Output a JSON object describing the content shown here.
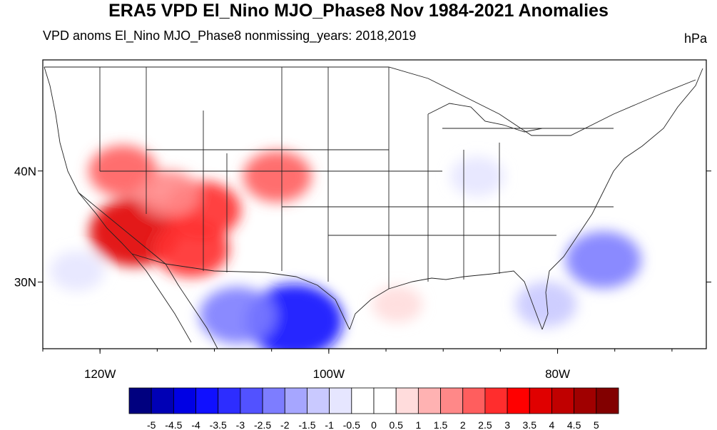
{
  "title": "ERA5 VPD El_Nino MJO_Phase8 Nov 1984-2021 Anomalies",
  "subtitle": "VPD anoms El_Nino MJO_Phase8 nonmissing_years: 2018,2019",
  "units": "hPa",
  "map": {
    "lon_range": [
      -125,
      -67
    ],
    "lat_range": [
      24,
      50
    ],
    "y_ticks": [
      {
        "value": 40,
        "label": "40N"
      },
      {
        "value": 30,
        "label": "30N"
      }
    ],
    "x_ticks": [
      {
        "value": -120,
        "label": "120W"
      },
      {
        "value": -100,
        "label": "100W"
      },
      {
        "value": -80,
        "label": "80W"
      }
    ],
    "anomaly_features": [
      {
        "name": "southwest-dry",
        "lon": -117,
        "lat": 34.5,
        "value": 3.5
      },
      {
        "name": "four-corners-dry",
        "lon": -111,
        "lat": 36.5,
        "value": 2.5
      },
      {
        "name": "colorado-dry",
        "lon": -104.5,
        "lat": 39.5,
        "value": 2
      },
      {
        "name": "nevada-dry",
        "lon": -118,
        "lat": 40,
        "value": 2
      },
      {
        "name": "arizona-dry",
        "lon": -112,
        "lat": 33,
        "value": 2.5
      },
      {
        "name": "great-basin-dry",
        "lon": -114,
        "lat": 38,
        "value": 1.5
      },
      {
        "name": "mexico-moist",
        "lon": -103,
        "lat": 26.5,
        "value": -4
      },
      {
        "name": "sierra-madre-moist",
        "lon": -108,
        "lat": 27,
        "value": -2.5
      },
      {
        "name": "atlantic-moist",
        "lon": -76,
        "lat": 32,
        "value": -2.5
      },
      {
        "name": "ohio-valley-moist",
        "lon": -87,
        "lat": 39.5,
        "value": -1
      },
      {
        "name": "florida-moist",
        "lon": -81,
        "lat": 28,
        "value": -1.5
      },
      {
        "name": "pacific-moist",
        "lon": -122,
        "lat": 31,
        "value": -1
      },
      {
        "name": "gulf-dry",
        "lon": -94,
        "lat": 28,
        "value": 0.7
      }
    ]
  },
  "colorbar": {
    "colors": [
      "#00007f",
      "#0000b5",
      "#0000e4",
      "#1010ff",
      "#2d2dff",
      "#5252ff",
      "#7d7dff",
      "#a6a6ff",
      "#c9c9ff",
      "#e6e6ff",
      "#ffffff",
      "#ffffff",
      "#ffdcdc",
      "#ffb2b2",
      "#ff8888",
      "#ff5e5e",
      "#ff2d2d",
      "#ff0000",
      "#e00000",
      "#c00000",
      "#a00000",
      "#820000"
    ],
    "labels": [
      "-5",
      "-4.5",
      "-4",
      "-3.5",
      "-3",
      "-2.5",
      "-2",
      "-1.5",
      "-1",
      "-0.5",
      "0",
      "0.5",
      "1",
      "1.5",
      "2",
      "2.5",
      "3",
      "3.5",
      "4",
      "4.5",
      "5"
    ]
  }
}
